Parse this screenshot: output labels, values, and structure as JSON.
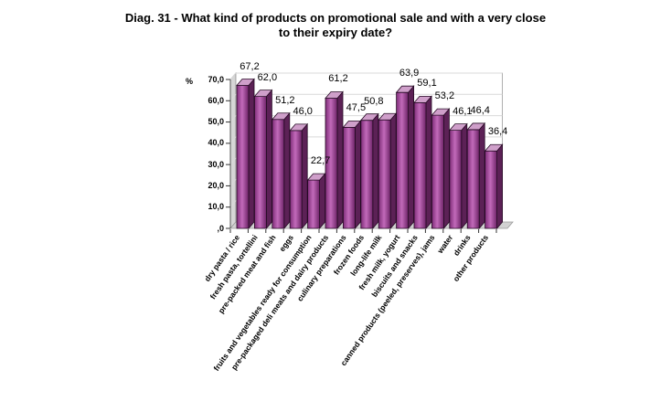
{
  "title": {
    "line1": "Diag. 31 - What kind of products on promotional sale and with a very close",
    "line2": "to their expiry date?"
  },
  "y_axis": {
    "title": "%",
    "ticks": [
      ",0",
      "10,0",
      "20,0",
      "30,0",
      "40,0",
      "50,0",
      "60,0",
      "70,0"
    ]
  },
  "chart_data": {
    "type": "bar",
    "style": "3d-column",
    "title": "Diag. 31 - What kind of products on promotional sale and with a very close to their expiry date?",
    "xlabel": "",
    "ylabel": "%",
    "ylim": [
      0,
      70
    ],
    "grid": true,
    "legend_position": "none",
    "bar_color": "#a0509b",
    "categories": [
      "dry pasta / rice",
      "fresh pasta, tortellini",
      "pre-packed meat and fish",
      "eggs",
      "fruits and vegetables ready for consumption",
      "pre-packaged deli meats and dairy products",
      "culinary preparations",
      "frozen foods",
      "long-life milk",
      "fresh milk, yogurt",
      "biscuits and snacks",
      "canned products (peeled, preserves), jams",
      "water",
      "drinks",
      "other products"
    ],
    "values": [
      67.2,
      62.0,
      51.2,
      46.0,
      22.7,
      61.2,
      47.5,
      50.8,
      51.0,
      63.9,
      59.1,
      53.2,
      46.1,
      46.4,
      36.4
    ],
    "data_labels": [
      "67,2",
      "62,0",
      "51,2",
      "46,0",
      "22,7",
      "61,2",
      "47,5",
      "50,8",
      "",
      "63,9",
      "59,1",
      "53,2",
      "46,1",
      "46,4",
      "36,4"
    ]
  }
}
